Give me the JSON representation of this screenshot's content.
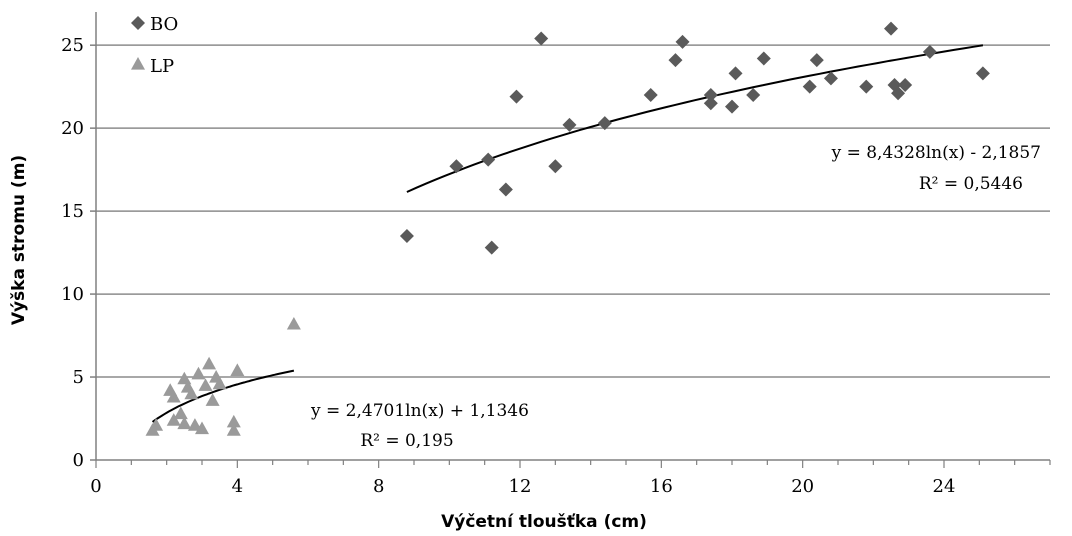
{
  "chart_data": {
    "type": "scatter",
    "xlabel": "Výčetní tloušťka (cm)",
    "ylabel": "Výška stromu (m)",
    "xlim": [
      0,
      27
    ],
    "ylim": [
      0,
      27
    ],
    "x_ticks": [
      "0",
      "4",
      "8",
      "12",
      "16",
      "20",
      "24"
    ],
    "y_ticks": [
      "0",
      "5",
      "10",
      "15",
      "20",
      "25"
    ],
    "grid": "horizontal",
    "legend_position": "top-left",
    "series": [
      {
        "name": "BO",
        "marker": "diamond",
        "color": "#5a5a5a",
        "points": [
          [
            8.8,
            13.5
          ],
          [
            10.2,
            17.7
          ],
          [
            11.1,
            18.1
          ],
          [
            11.2,
            12.8
          ],
          [
            11.6,
            16.3
          ],
          [
            11.9,
            21.9
          ],
          [
            12.6,
            25.4
          ],
          [
            13.0,
            17.7
          ],
          [
            13.4,
            20.2
          ],
          [
            14.4,
            20.3
          ],
          [
            15.7,
            22.0
          ],
          [
            16.4,
            24.1
          ],
          [
            16.6,
            25.2
          ],
          [
            17.4,
            21.5
          ],
          [
            17.4,
            22.0
          ],
          [
            18.0,
            21.3
          ],
          [
            18.1,
            23.3
          ],
          [
            18.6,
            22.0
          ],
          [
            18.9,
            24.2
          ],
          [
            20.2,
            22.5
          ],
          [
            20.4,
            24.1
          ],
          [
            20.8,
            23.0
          ],
          [
            21.8,
            22.5
          ],
          [
            22.5,
            26.0
          ],
          [
            22.6,
            22.6
          ],
          [
            22.7,
            22.1
          ],
          [
            22.9,
            22.6
          ],
          [
            23.6,
            24.6
          ],
          [
            25.1,
            23.3
          ]
        ],
        "trendline": {
          "a": 8.4328,
          "b": -2.1857,
          "x_range": [
            8.8,
            25.1
          ],
          "equation": "y = 8,4328ln(x) - 2,1857",
          "r2": "R² = 0,5446"
        }
      },
      {
        "name": "LP",
        "marker": "triangle",
        "color": "#9a9a9a",
        "points": [
          [
            1.6,
            1.8
          ],
          [
            1.7,
            2.1
          ],
          [
            2.1,
            4.2
          ],
          [
            2.2,
            3.8
          ],
          [
            2.2,
            2.4
          ],
          [
            2.4,
            2.8
          ],
          [
            2.5,
            4.9
          ],
          [
            2.5,
            2.2
          ],
          [
            2.6,
            4.4
          ],
          [
            2.7,
            4.0
          ],
          [
            2.8,
            2.1
          ],
          [
            2.9,
            5.2
          ],
          [
            3.0,
            1.9
          ],
          [
            3.1,
            4.5
          ],
          [
            3.2,
            5.8
          ],
          [
            3.3,
            3.6
          ],
          [
            3.4,
            5.0
          ],
          [
            3.5,
            4.6
          ],
          [
            3.9,
            2.3
          ],
          [
            3.9,
            1.8
          ],
          [
            4.0,
            5.4
          ],
          [
            5.6,
            8.2
          ]
        ],
        "trendline": {
          "a": 2.4701,
          "b": 1.1346,
          "x_range": [
            1.6,
            5.6
          ],
          "equation": "y = 2,4701ln(x) + 1,1346",
          "r2": "R² = 0,195"
        }
      }
    ]
  }
}
